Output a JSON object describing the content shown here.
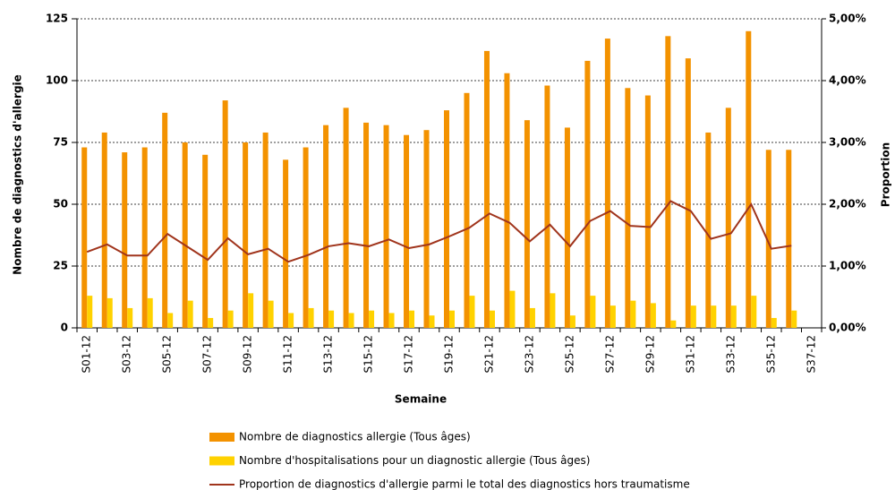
{
  "chart_data": {
    "type": "bar-line",
    "x_label": "Semaine",
    "y_label": "Nombre de diagnostics d'allergie",
    "y2_label": "Proportion",
    "categories": [
      "S01-12",
      null,
      "S03-12",
      null,
      "S05-12",
      null,
      "S07-12",
      null,
      "S09-12",
      null,
      "S11-12",
      null,
      "S13-12",
      null,
      "S15-12",
      null,
      "S17-12",
      null,
      "S19-12",
      null,
      "S21-12",
      null,
      "S23-12",
      null,
      "S25-12",
      null,
      "S27-12",
      null,
      "S29-12",
      null,
      "S31-12",
      null,
      "S33-12",
      null,
      "S35-12",
      null,
      "S37-12"
    ],
    "series": [
      {
        "name": "Nombre de diagnostics allergie (Tous âges)",
        "color": "#f39200",
        "kind": "bar",
        "values": [
          73,
          79,
          71,
          73,
          87,
          75,
          70,
          92,
          75,
          79,
          68,
          73,
          82,
          89,
          83,
          82,
          78,
          80,
          88,
          95,
          112,
          103,
          84,
          98,
          81,
          108,
          117,
          97,
          94,
          118,
          109,
          79,
          89,
          120,
          72,
          72,
          null
        ]
      },
      {
        "name": "Nombre d'hospitalisations pour un diagnostic allergie (Tous âges)",
        "color": "#ffd200",
        "kind": "bar",
        "values": [
          13,
          12,
          8,
          12,
          6,
          11,
          4,
          7,
          14,
          11,
          6,
          8,
          7,
          6,
          7,
          6,
          7,
          5,
          7,
          13,
          7,
          15,
          8,
          14,
          5,
          13,
          9,
          11,
          10,
          3,
          9,
          9,
          9,
          13,
          4,
          7,
          null
        ]
      },
      {
        "name": "Proportion de diagnostics d'allergie parmi le total des diagnostics hors traumatisme",
        "color": "#a0341c",
        "kind": "line",
        "axis": "y2",
        "values": [
          1.23,
          1.35,
          1.17,
          1.17,
          1.52,
          1.31,
          1.1,
          1.45,
          1.19,
          1.28,
          1.07,
          1.18,
          1.32,
          1.37,
          1.32,
          1.43,
          1.29,
          1.35,
          1.48,
          1.62,
          1.85,
          1.7,
          1.4,
          1.67,
          1.32,
          1.73,
          1.89,
          1.65,
          1.63,
          2.05,
          1.89,
          1.44,
          1.53,
          2.0,
          1.28,
          1.33,
          null
        ]
      }
    ],
    "ylim": [
      0,
      125
    ],
    "yticks": [
      0,
      25,
      50,
      75,
      100,
      125
    ],
    "y2lim": [
      0,
      5
    ],
    "y2ticks": [
      {
        "value": 0,
        "label": "0,00%"
      },
      {
        "value": 1,
        "label": "1,00%"
      },
      {
        "value": 2,
        "label": "2,00%"
      },
      {
        "value": 3,
        "label": "3,00%"
      },
      {
        "value": 4,
        "label": "4,00%"
      },
      {
        "value": 5,
        "label": "5,00%"
      }
    ],
    "grid": true
  }
}
